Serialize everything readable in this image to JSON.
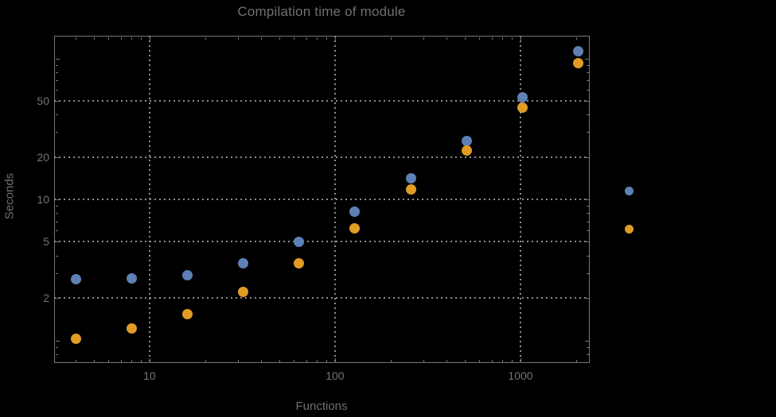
{
  "title": "Compilation time of module",
  "colors": {
    "background": "#000000",
    "series_blue": "#5E81B5",
    "series_orange": "#E19C24",
    "text": "#747474",
    "grid": "#8d8d8d",
    "frame": "#757575"
  },
  "chart_data": {
    "type": "scatter",
    "title": "Compilation time of module",
    "xlabel": "Functions",
    "ylabel": "Seconds",
    "x_scale": "log",
    "y_scale": "log",
    "xlim": [
      3.06,
      2340
    ],
    "ylim": [
      0.7,
      145
    ],
    "grid": "dotted gridlines at labeled ticks only",
    "legend_position": "right-of-frame, markers only (no visible text)",
    "x": [
      4,
      8,
      16,
      32,
      64,
      128,
      256,
      512,
      1024,
      2048
    ],
    "series": [
      {
        "name": "blue",
        "color": "#5E81B5",
        "values": [
          2.7,
          2.75,
          2.9,
          3.5,
          5.0,
          8.2,
          14.1,
          26,
          53,
          113
        ]
      },
      {
        "name": "orange",
        "color": "#E19C24",
        "values": [
          1.03,
          1.22,
          1.54,
          2.2,
          3.5,
          6.2,
          11.7,
          22.3,
          45,
          93
        ]
      }
    ],
    "x_ticks": {
      "values": [
        10,
        100,
        1000
      ],
      "labels": [
        "10",
        "100",
        "1000"
      ]
    },
    "y_ticks": {
      "values": [
        2,
        5,
        10,
        20,
        50
      ],
      "labels": [
        "2",
        "5",
        "10",
        "20",
        "50"
      ],
      "major_unlabeled": [
        1,
        100
      ]
    },
    "legend": {
      "marker_colors": [
        "#5E81B5",
        "#E19C24"
      ]
    }
  }
}
